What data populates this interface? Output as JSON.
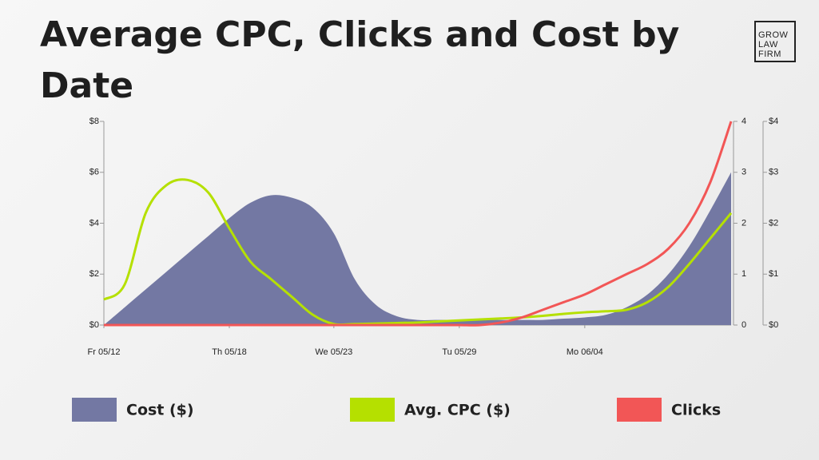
{
  "chart_data": {
    "type": "combo",
    "title": "Average CPC, Clicks and Cost by Date",
    "categories": [
      "Fr 05/12",
      null,
      null,
      null,
      null,
      null,
      "Th 05/18",
      null,
      null,
      null,
      null,
      "We 05/23",
      null,
      null,
      null,
      null,
      null,
      "Tu 05/29",
      null,
      null,
      null,
      null,
      null,
      "Mo 06/04",
      null,
      null,
      null,
      null,
      null,
      null,
      null
    ],
    "ylim": [
      0,
      8
    ],
    "yticks": [
      {
        "value": 0,
        "label": "$0"
      },
      {
        "value": 2,
        "label": "$2"
      },
      {
        "value": 4,
        "label": "$4"
      },
      {
        "value": 6,
        "label": "$6"
      },
      {
        "value": 8,
        "label": "$8"
      }
    ],
    "y2lim": [
      0,
      4
    ],
    "y2ticks": [
      0,
      1,
      2,
      3,
      4
    ],
    "y3lim": [
      0,
      4
    ],
    "y3ticks": [
      {
        "value": 0,
        "label": "$0"
      },
      {
        "value": 1,
        "label": "$1"
      },
      {
        "value": 2,
        "label": "$2"
      },
      {
        "value": 3,
        "label": "$3"
      },
      {
        "value": 4,
        "label": "$4"
      }
    ],
    "series": [
      {
        "name": "Cost ($)",
        "type": "area",
        "axis": "y",
        "color": "#7378a3",
        "values": [
          0,
          0.7,
          1.4,
          2.1,
          2.8,
          3.5,
          4.2,
          4.8,
          5.1,
          5.0,
          4.6,
          3.6,
          1.8,
          0.8,
          0.35,
          0.2,
          0.2,
          0.2,
          0.2,
          0.2,
          0.2,
          0.2,
          0.25,
          0.3,
          0.4,
          0.7,
          1.2,
          2.0,
          3.1,
          4.5,
          6.0
        ]
      },
      {
        "name": "Avg. CPC ($)",
        "type": "line",
        "axis": "y3",
        "color": "#b5e000",
        "values": [
          0.5,
          0.8,
          2.2,
          2.75,
          2.85,
          2.6,
          1.9,
          1.25,
          0.9,
          0.55,
          0.2,
          0.02,
          0.02,
          0.03,
          0.04,
          0.05,
          0.07,
          0.09,
          0.11,
          0.13,
          0.15,
          0.18,
          0.22,
          0.25,
          0.27,
          0.3,
          0.45,
          0.75,
          1.2,
          1.7,
          2.2
        ]
      },
      {
        "name": "Clicks",
        "type": "line",
        "axis": "y2",
        "color": "#f25656",
        "values": [
          0,
          0,
          0,
          0,
          0,
          0,
          0,
          0,
          0,
          0,
          0,
          0,
          0,
          0,
          0,
          0,
          0,
          0,
          0,
          0.05,
          0.15,
          0.3,
          0.45,
          0.6,
          0.8,
          1.0,
          1.2,
          1.5,
          2.0,
          2.8,
          4.0
        ]
      }
    ]
  },
  "logo": {
    "lines": [
      "GROW",
      "LAW",
      "FIRM"
    ]
  }
}
